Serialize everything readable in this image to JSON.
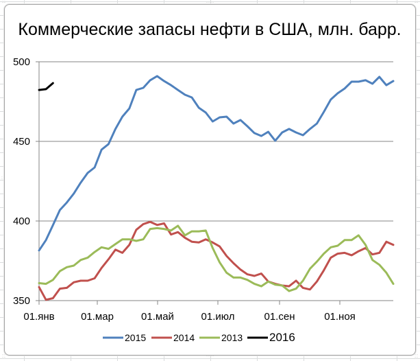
{
  "chart_data": {
    "type": "line",
    "title": "Коммерческие запасы нефти в США, млн. барр.",
    "xlabel": "",
    "ylabel": "",
    "ylim": [
      350,
      500
    ],
    "yticks": [
      "350",
      "400",
      "450",
      "500"
    ],
    "xticks": [
      "01.янв",
      "01.мар",
      "01.май",
      "01.июл",
      "01.сен",
      "01.ноя"
    ],
    "grid": "horizontal",
    "legend_position": "bottom",
    "x": "weekly, 52 points, Jan to Dec",
    "series": [
      {
        "name": "2015",
        "color": "#4f81bd",
        "values": [
          381.5,
          388,
          397.4,
          406.9,
          411.6,
          417.2,
          424.1,
          430.2,
          433.6,
          444.8,
          448.3,
          457.8,
          465.5,
          470.7,
          482.3,
          483.6,
          488.4,
          491,
          487.9,
          485.3,
          482.3,
          479.3,
          477.6,
          471.1,
          468.1,
          462.5,
          465.1,
          465.5,
          461.2,
          463.4,
          459.5,
          455.2,
          453.4,
          456,
          450.4,
          455.6,
          457.8,
          455.6,
          453.9,
          457.8,
          461.2,
          468.5,
          476.3,
          480.2,
          483.2,
          487.5,
          487.5,
          488.4,
          486.2,
          490.5,
          485.3,
          487.9
        ]
      },
      {
        "name": "2014",
        "color": "#c0504d",
        "values": [
          358.5,
          350.5,
          351.5,
          357.5,
          358,
          361.5,
          362.5,
          362.5,
          364,
          370.5,
          376,
          382,
          380,
          385,
          394.5,
          398,
          399.5,
          397.5,
          398.5,
          391.5,
          393,
          389.5,
          387,
          386.5,
          388.5,
          386.5,
          384,
          378,
          373.5,
          369.5,
          366.5,
          365.5,
          367,
          362,
          360.5,
          359.5,
          359,
          362.5,
          358,
          357,
          362,
          369,
          377,
          379.5,
          380,
          378.5,
          381,
          383,
          379,
          380,
          387,
          385
        ]
      },
      {
        "name": "2013",
        "color": "#9bbb59",
        "values": [
          361,
          360.5,
          363,
          368.5,
          371,
          372,
          375.5,
          377,
          380.5,
          383.5,
          382.5,
          385.5,
          388.5,
          388.5,
          387.5,
          388.5,
          395,
          395.5,
          395,
          394,
          397,
          391,
          393.5,
          393.5,
          394,
          383,
          374,
          367.5,
          364.5,
          364.5,
          363,
          360.5,
          359,
          362,
          360,
          359.5,
          356,
          357.5,
          362.5,
          370,
          374.5,
          379.5,
          383.5,
          384.5,
          388,
          388,
          391,
          385,
          375.5,
          372.5,
          367.5,
          360.5
        ]
      },
      {
        "name": "2016",
        "color": "#000000",
        "values": [
          482.3,
          482.8,
          486.6
        ]
      }
    ]
  },
  "legend": [
    {
      "label": "2015",
      "color": "#4f81bd"
    },
    {
      "label": "2014",
      "color": "#c0504d"
    },
    {
      "label": "2013",
      "color": "#9bbb59"
    },
    {
      "label": "2016",
      "color": "#000000"
    }
  ]
}
